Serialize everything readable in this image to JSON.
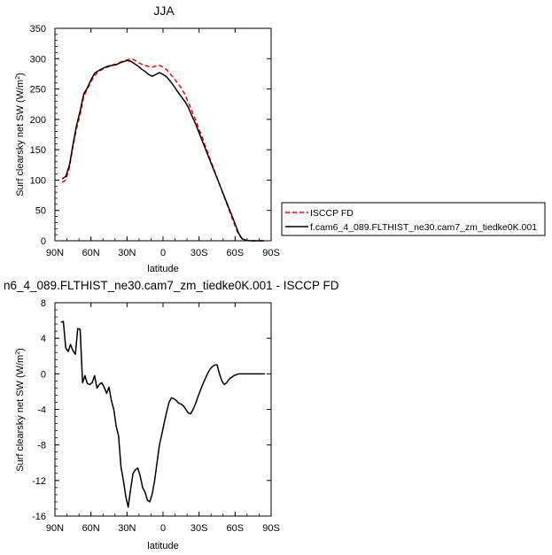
{
  "chart_data": [
    {
      "type": "line",
      "title": "JJA",
      "xlabel": "latitude",
      "ylabel": "Surf clearsky net SW (W/m",
      "ylabel_sup": "2",
      "ylabel_tail": ")",
      "xlim": [
        90,
        -90
      ],
      "ylim": [
        0,
        350
      ],
      "xticks": [
        90,
        60,
        30,
        0,
        -30,
        -60,
        -90
      ],
      "xtick_labels": [
        "90N",
        "60N",
        "30N",
        "0",
        "30S",
        "60S",
        "90S"
      ],
      "yticks": [
        0,
        50,
        100,
        150,
        200,
        250,
        300,
        350
      ],
      "ytick_labels": [
        "0",
        "50",
        "100",
        "150",
        "200",
        "250",
        "300",
        "350"
      ],
      "legend_position": "right",
      "series": [
        {
          "name": "ISCCP FD",
          "color": "#ff0000",
          "dash": "dashed",
          "x": [
            84,
            81,
            78,
            75,
            72,
            69,
            66,
            63,
            60,
            57,
            54,
            51,
            48,
            45,
            42,
            39,
            36,
            33,
            30,
            27,
            24,
            21,
            18,
            15,
            12,
            9,
            6,
            3,
            0,
            -3,
            -6,
            -9,
            -12,
            -15,
            -18,
            -21,
            -24,
            -27,
            -30,
            -33,
            -36,
            -39,
            -42,
            -45,
            -48,
            -51,
            -54,
            -57,
            -60,
            -63,
            -66,
            -69,
            -72,
            -75,
            -78,
            -81,
            -84
          ],
          "values": [
            96,
            100,
            120,
            155,
            185,
            208,
            238,
            250,
            262,
            272,
            278,
            282,
            285,
            287,
            290,
            291,
            294,
            296,
            298,
            300,
            298,
            294,
            291,
            289,
            287,
            286,
            288,
            289,
            286,
            282,
            275,
            268,
            260,
            252,
            242,
            228,
            214,
            200,
            184,
            168,
            152,
            135,
            120,
            104,
            88,
            72,
            56,
            40,
            24,
            10,
            3,
            1,
            0,
            0,
            0,
            0,
            0
          ]
        },
        {
          "name": "f.cam6_4_089.FLTHIST_ne30.cam7_zm_tiedke0K.001",
          "color": "#000000",
          "dash": "solid",
          "x": [
            84,
            81,
            78,
            75,
            72,
            69,
            66,
            63,
            60,
            57,
            54,
            51,
            48,
            45,
            42,
            39,
            36,
            33,
            30,
            27,
            24,
            21,
            18,
            15,
            12,
            9,
            6,
            3,
            0,
            -3,
            -6,
            -9,
            -12,
            -15,
            -18,
            -21,
            -24,
            -27,
            -30,
            -33,
            -36,
            -39,
            -42,
            -45,
            -48,
            -51,
            -54,
            -57,
            -60,
            -63,
            -66,
            -69,
            -72,
            -75,
            -78,
            -81,
            -84
          ],
          "values": [
            102,
            106,
            124,
            158,
            190,
            214,
            242,
            252,
            265,
            276,
            280,
            283,
            286,
            288,
            289,
            290,
            293,
            295,
            297,
            296,
            292,
            288,
            283,
            279,
            274,
            271,
            274,
            277,
            274,
            270,
            263,
            255,
            246,
            238,
            230,
            220,
            206,
            193,
            178,
            163,
            148,
            133,
            118,
            103,
            88,
            73,
            58,
            43,
            28,
            12,
            3,
            1,
            0,
            0,
            0,
            0,
            0
          ]
        }
      ]
    },
    {
      "type": "line",
      "title": "n6_4_089.FLTHIST_ne30.cam7_zm_tiedke0K.001 - ISCCP FD",
      "xlabel": "latitude",
      "ylabel": "Surf clearsky net SW (W/m",
      "ylabel_sup": "2",
      "ylabel_tail": ")",
      "xlim": [
        90,
        -90
      ],
      "ylim": [
        -16,
        8
      ],
      "xticks": [
        90,
        60,
        30,
        0,
        -30,
        -60,
        -90
      ],
      "xtick_labels": [
        "90N",
        "60N",
        "30N",
        "0",
        "30S",
        "60S",
        "90S"
      ],
      "yticks": [
        -16,
        -12,
        -8,
        -4,
        0,
        4,
        8
      ],
      "ytick_labels": [
        "-16",
        "-12",
        "-8",
        "-4",
        "0",
        "4",
        "8"
      ],
      "series": [
        {
          "name": "",
          "color": "#000000",
          "dash": "solid",
          "x": [
            85,
            83,
            81,
            79,
            77,
            75,
            73,
            71,
            69,
            67,
            65,
            63,
            61,
            59,
            57,
            55,
            53,
            51,
            49,
            47,
            45,
            43,
            41,
            39,
            37,
            35,
            33,
            31,
            29,
            27,
            25,
            23,
            21,
            19,
            17,
            15,
            13,
            11,
            9,
            7,
            5,
            3,
            1,
            -1,
            -3,
            -5,
            -7,
            -9,
            -11,
            -13,
            -15,
            -17,
            -19,
            -21,
            -23,
            -25,
            -27,
            -29,
            -31,
            -33,
            -35,
            -37,
            -39,
            -41,
            -43,
            -45,
            -47,
            -49,
            -51,
            -53,
            -55,
            -57,
            -59,
            -61,
            -63,
            -65,
            -67,
            -69,
            -71,
            -73,
            -75,
            -77,
            -79,
            -81,
            -83,
            -85
          ],
          "values": [
            5.8,
            5.9,
            2.9,
            2.5,
            3.3,
            2.6,
            2.2,
            5.1,
            5.0,
            -1.0,
            -0.2,
            -1.1,
            -1.2,
            -1.0,
            -0.2,
            -1.6,
            -1.2,
            -1.0,
            -1.5,
            -2.2,
            -1.5,
            -3.0,
            -4.0,
            -5.9,
            -7.0,
            -10.5,
            -12.0,
            -13.8,
            -15.0,
            -13.0,
            -11.2,
            -10.8,
            -10.6,
            -11.5,
            -12.8,
            -13.3,
            -14.2,
            -14.4,
            -13.5,
            -12.0,
            -10.0,
            -8.0,
            -6.8,
            -5.5,
            -4.3,
            -3.2,
            -2.7,
            -2.8,
            -3.0,
            -3.3,
            -3.4,
            -3.6,
            -4.0,
            -4.4,
            -4.5,
            -4.0,
            -3.4,
            -2.6,
            -1.9,
            -1.2,
            -0.6,
            0.0,
            0.5,
            0.8,
            1.0,
            1.0,
            0.0,
            -0.8,
            -1.2,
            -1.0,
            -0.6,
            -0.4,
            -0.2,
            -0.1,
            0.0,
            0.0,
            0.0,
            0.0,
            0.0,
            0.0,
            0.0,
            0.0,
            0.0,
            0.0,
            0.0,
            0.0
          ]
        }
      ]
    }
  ]
}
